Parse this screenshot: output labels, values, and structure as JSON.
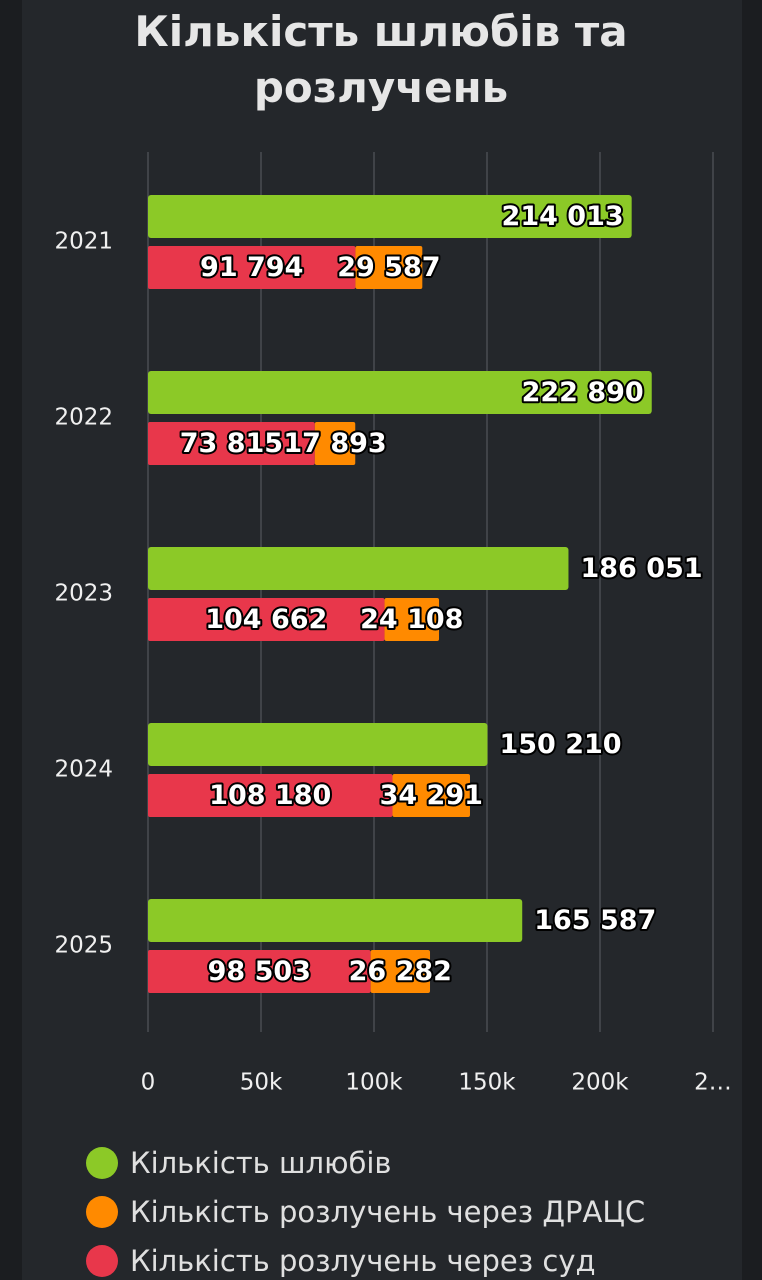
{
  "chart_data": {
    "type": "bar",
    "orientation": "horizontal",
    "title": "Кількість шлюбів та розлучень",
    "categories": [
      "2021",
      "2022",
      "2023",
      "2024",
      "2025"
    ],
    "series": [
      {
        "name": "Кількість шлюбів",
        "color": "#8cc927",
        "values": [
          214013,
          222890,
          186051,
          150210,
          165587
        ],
        "value_labels": [
          "214 013",
          "222 890",
          "186 051",
          "150 210",
          "165 587"
        ]
      },
      {
        "name": "Кількість розлучень через ДРАЦС",
        "color": "#ff8a00",
        "values": [
          29587,
          17893,
          24108,
          34291,
          26282
        ],
        "value_labels": [
          "29 587",
          "17 893",
          "24 108",
          "34 291",
          "26 282"
        ]
      },
      {
        "name": "Кількість розлучень через суд",
        "color": "#e8374b",
        "values": [
          91794,
          73815,
          104662,
          108180,
          98503
        ],
        "value_labels": [
          "91 794",
          "73 815",
          "104 662",
          "108 180",
          "98 503"
        ]
      }
    ],
    "xlim": [
      0,
      250000
    ],
    "xticks": [
      0,
      {
        "value": 50000,
        "label": "50k"
      },
      {
        "value": 100000,
        "label": "100k"
      },
      {
        "value": 150000,
        "label": "150k"
      },
      {
        "value": 200000,
        "label": "200k"
      },
      {
        "value": 250000,
        "label": "2…"
      }
    ],
    "grid": true
  }
}
